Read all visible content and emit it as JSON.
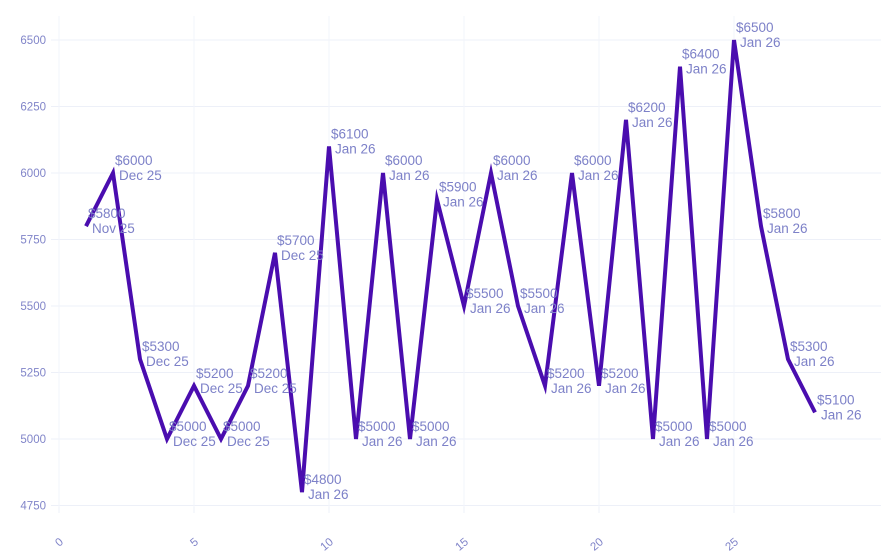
{
  "style": {
    "background": "#ffffff",
    "line_color": "#4a0daf",
    "point_label_color": "#7d81c8",
    "tick_label_color": "#8185c9",
    "grid_color": "#edf0f8",
    "vertical_grid_color": "#f2f4fb"
  },
  "chart_data": {
    "type": "line",
    "title": "",
    "xlabel": "",
    "ylabel": "",
    "grid": true,
    "legend": false,
    "x_ticks": [
      0,
      5,
      10,
      15,
      20,
      25
    ],
    "y_ticks": [
      4750,
      5000,
      5250,
      5500,
      5750,
      6000,
      6250,
      6500
    ],
    "xlim": [
      0,
      30.4
    ],
    "ylim": [
      4712,
      6608
    ],
    "x": [
      1,
      2,
      3,
      4,
      5,
      6,
      7,
      8,
      9,
      10,
      11,
      12,
      13,
      14,
      15,
      16,
      17,
      18,
      19,
      20,
      21,
      22,
      23,
      24,
      25,
      26,
      27,
      28
    ],
    "y": [
      5800,
      6000,
      5300,
      5000,
      5200,
      5000,
      5200,
      5700,
      4800,
      6100,
      5000,
      6000,
      5000,
      5900,
      5500,
      6000,
      5500,
      5200,
      6000,
      5200,
      6200,
      5000,
      6400,
      5000,
      6500,
      5800,
      5300,
      5100
    ],
    "point_labels": [
      {
        "value": "$5800",
        "date": "Nov 25"
      },
      {
        "value": "$6000",
        "date": "Dec 25"
      },
      {
        "value": "$5300",
        "date": "Dec 25"
      },
      {
        "value": "$5000",
        "date": "Dec 25"
      },
      {
        "value": "$5200",
        "date": "Dec 25"
      },
      {
        "value": "$5000",
        "date": "Dec 25"
      },
      {
        "value": "$5200",
        "date": "Dec 25"
      },
      {
        "value": "$5700",
        "date": "Dec 25"
      },
      {
        "value": "$4800",
        "date": "Jan 26"
      },
      {
        "value": "$6100",
        "date": "Jan 26"
      },
      {
        "value": "$5000",
        "date": "Jan 26"
      },
      {
        "value": "$6000",
        "date": "Jan 26"
      },
      {
        "value": "$5000",
        "date": "Jan 26"
      },
      {
        "value": "$5900",
        "date": "Jan 26"
      },
      {
        "value": "$5500",
        "date": "Jan 26"
      },
      {
        "value": "$6000",
        "date": "Jan 26"
      },
      {
        "value": "$5500",
        "date": "Jan 26"
      },
      {
        "value": "$5200",
        "date": "Jan 26"
      },
      {
        "value": "$6000",
        "date": "Jan 26"
      },
      {
        "value": "$5200",
        "date": "Jan 26"
      },
      {
        "value": "$6200",
        "date": "Jan 26"
      },
      {
        "value": "$5000",
        "date": "Jan 26"
      },
      {
        "value": "$6400",
        "date": "Jan 26"
      },
      {
        "value": "$5000",
        "date": "Jan 26"
      },
      {
        "value": "$6500",
        "date": "Jan 26"
      },
      {
        "value": "$5800",
        "date": "Jan 26"
      },
      {
        "value": "$5300",
        "date": "Jan 26"
      },
      {
        "value": "$5100",
        "date": "Jan 26"
      }
    ]
  }
}
